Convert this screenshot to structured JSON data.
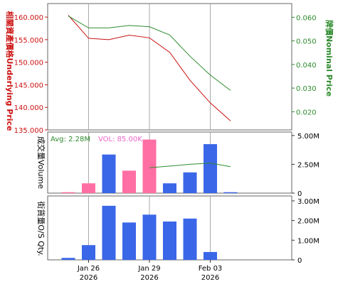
{
  "chart_data": [
    {
      "type": "line",
      "x": [
        "2026-01-23",
        "2026-01-26",
        "2026-01-27",
        "2026-01-28",
        "2026-01-29",
        "2026-01-30",
        "2026-02-02",
        "2026-02-03",
        "2026-02-04"
      ],
      "series": [
        {
          "name": "Underlying Price",
          "axis": "left",
          "color": "#cc1111",
          "values": [
            160.4,
            155.3,
            155.0,
            156.0,
            155.4,
            152.2,
            146.0,
            141.0,
            137.0
          ]
        },
        {
          "name": "Nominal Price",
          "axis": "right",
          "color": "#2e8b2e",
          "values": [
            0.0605,
            0.0555,
            0.0555,
            0.0565,
            0.056,
            0.0525,
            0.0435,
            0.0355,
            0.029
          ]
        }
      ],
      "ylabel_left": "相關資產價格Underlying Price",
      "ylabel_right": "牌價Nominal Price",
      "yticks_left": [
        "160.000",
        "155.000",
        "150.000",
        "145.000",
        "140.000",
        "135.000"
      ],
      "ylim_left": [
        135,
        163
      ],
      "yticks_right": [
        "0.060",
        "0.050",
        "0.040",
        "0.030",
        "0.020"
      ],
      "ylim_right": [
        0.0123,
        0.0658
      ]
    },
    {
      "type": "bar",
      "avg_text": "Avg: 2.28M",
      "vol_text": "VOL: 85.00K",
      "ylabel": "成交量Volume",
      "yticks": [
        "5.00M",
        "2.50M",
        "0"
      ],
      "ylim": [
        0,
        5.3
      ],
      "unit": "M",
      "values": [
        0.08,
        0.85,
        3.35,
        1.95,
        4.65,
        0.85,
        1.8,
        4.25,
        0.08
      ],
      "colors": [
        "#ff6fa3",
        "#ff6fa3",
        "#3a66e8",
        "#ff6fa3",
        "#ff6fa3",
        "#3a66e8",
        "#3a66e8",
        "#3a66e8",
        "#3a66e8"
      ],
      "avg_line": {
        "color": "#2e8b2e",
        "start_index": 4,
        "values": [
          2.2,
          2.35,
          2.5,
          2.6,
          2.3
        ]
      }
    },
    {
      "type": "bar",
      "ylabel": "街貨量O/S Qty.",
      "yticks": [
        "3.00M",
        "2.00M",
        "1.00M",
        "0"
      ],
      "ylim": [
        0,
        3.25
      ],
      "unit": "M",
      "values": [
        0.1,
        0.75,
        2.75,
        1.9,
        2.3,
        1.95,
        2.1,
        0.4,
        0
      ],
      "color": "#3a66e8"
    }
  ],
  "x_axis": {
    "labels": [
      {
        "index": 1,
        "line1": "Jan 26",
        "line2": "2026"
      },
      {
        "index": 4,
        "line1": "Jan 29",
        "line2": "2026"
      },
      {
        "index": 7,
        "line1": "Feb 03",
        "line2": "2026"
      }
    ]
  },
  "colors": {
    "left_axis": "#cc1111",
    "right_axis": "#2e8b2e",
    "vol_text": "#ee66cc",
    "avg_text": "#2e8b2e",
    "grid": "#aaaaaa"
  }
}
